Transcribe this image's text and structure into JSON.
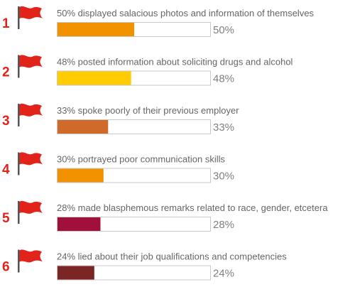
{
  "chart_data": {
    "type": "bar",
    "orientation": "horizontal",
    "xlim": [
      0,
      100
    ],
    "items": [
      {
        "rank": "1",
        "label": "50% displayed salacious photos and information of themselves",
        "value": 50,
        "value_label": "50%",
        "color": "#f39200"
      },
      {
        "rank": "2",
        "label": "48% posted information about soliciting drugs and alcohol",
        "value": 48,
        "value_label": "48%",
        "color": "#ffcc00"
      },
      {
        "rank": "3",
        "label": "33% spoke poorly of their previous employer",
        "value": 33,
        "value_label": "33%",
        "color": "#d06a2a"
      },
      {
        "rank": "4",
        "label": "30% portrayed poor communication skills",
        "value": 30,
        "value_label": "30%",
        "color": "#f39200"
      },
      {
        "rank": "5",
        "label": "28% made blasphemous remarks related to race, gender, etcetera",
        "value": 28,
        "value_label": "28%",
        "color": "#a0103a"
      },
      {
        "rank": "6",
        "label": "24% lied about their job qualifications and competencies",
        "value": 24,
        "value_label": "24%",
        "color": "#7b2525"
      }
    ]
  },
  "colors": {
    "flag": "#e2231a",
    "pole": "#555555",
    "bar_outline": "#c8c8c8"
  },
  "icons": {
    "flag": "red-flag-icon"
  }
}
